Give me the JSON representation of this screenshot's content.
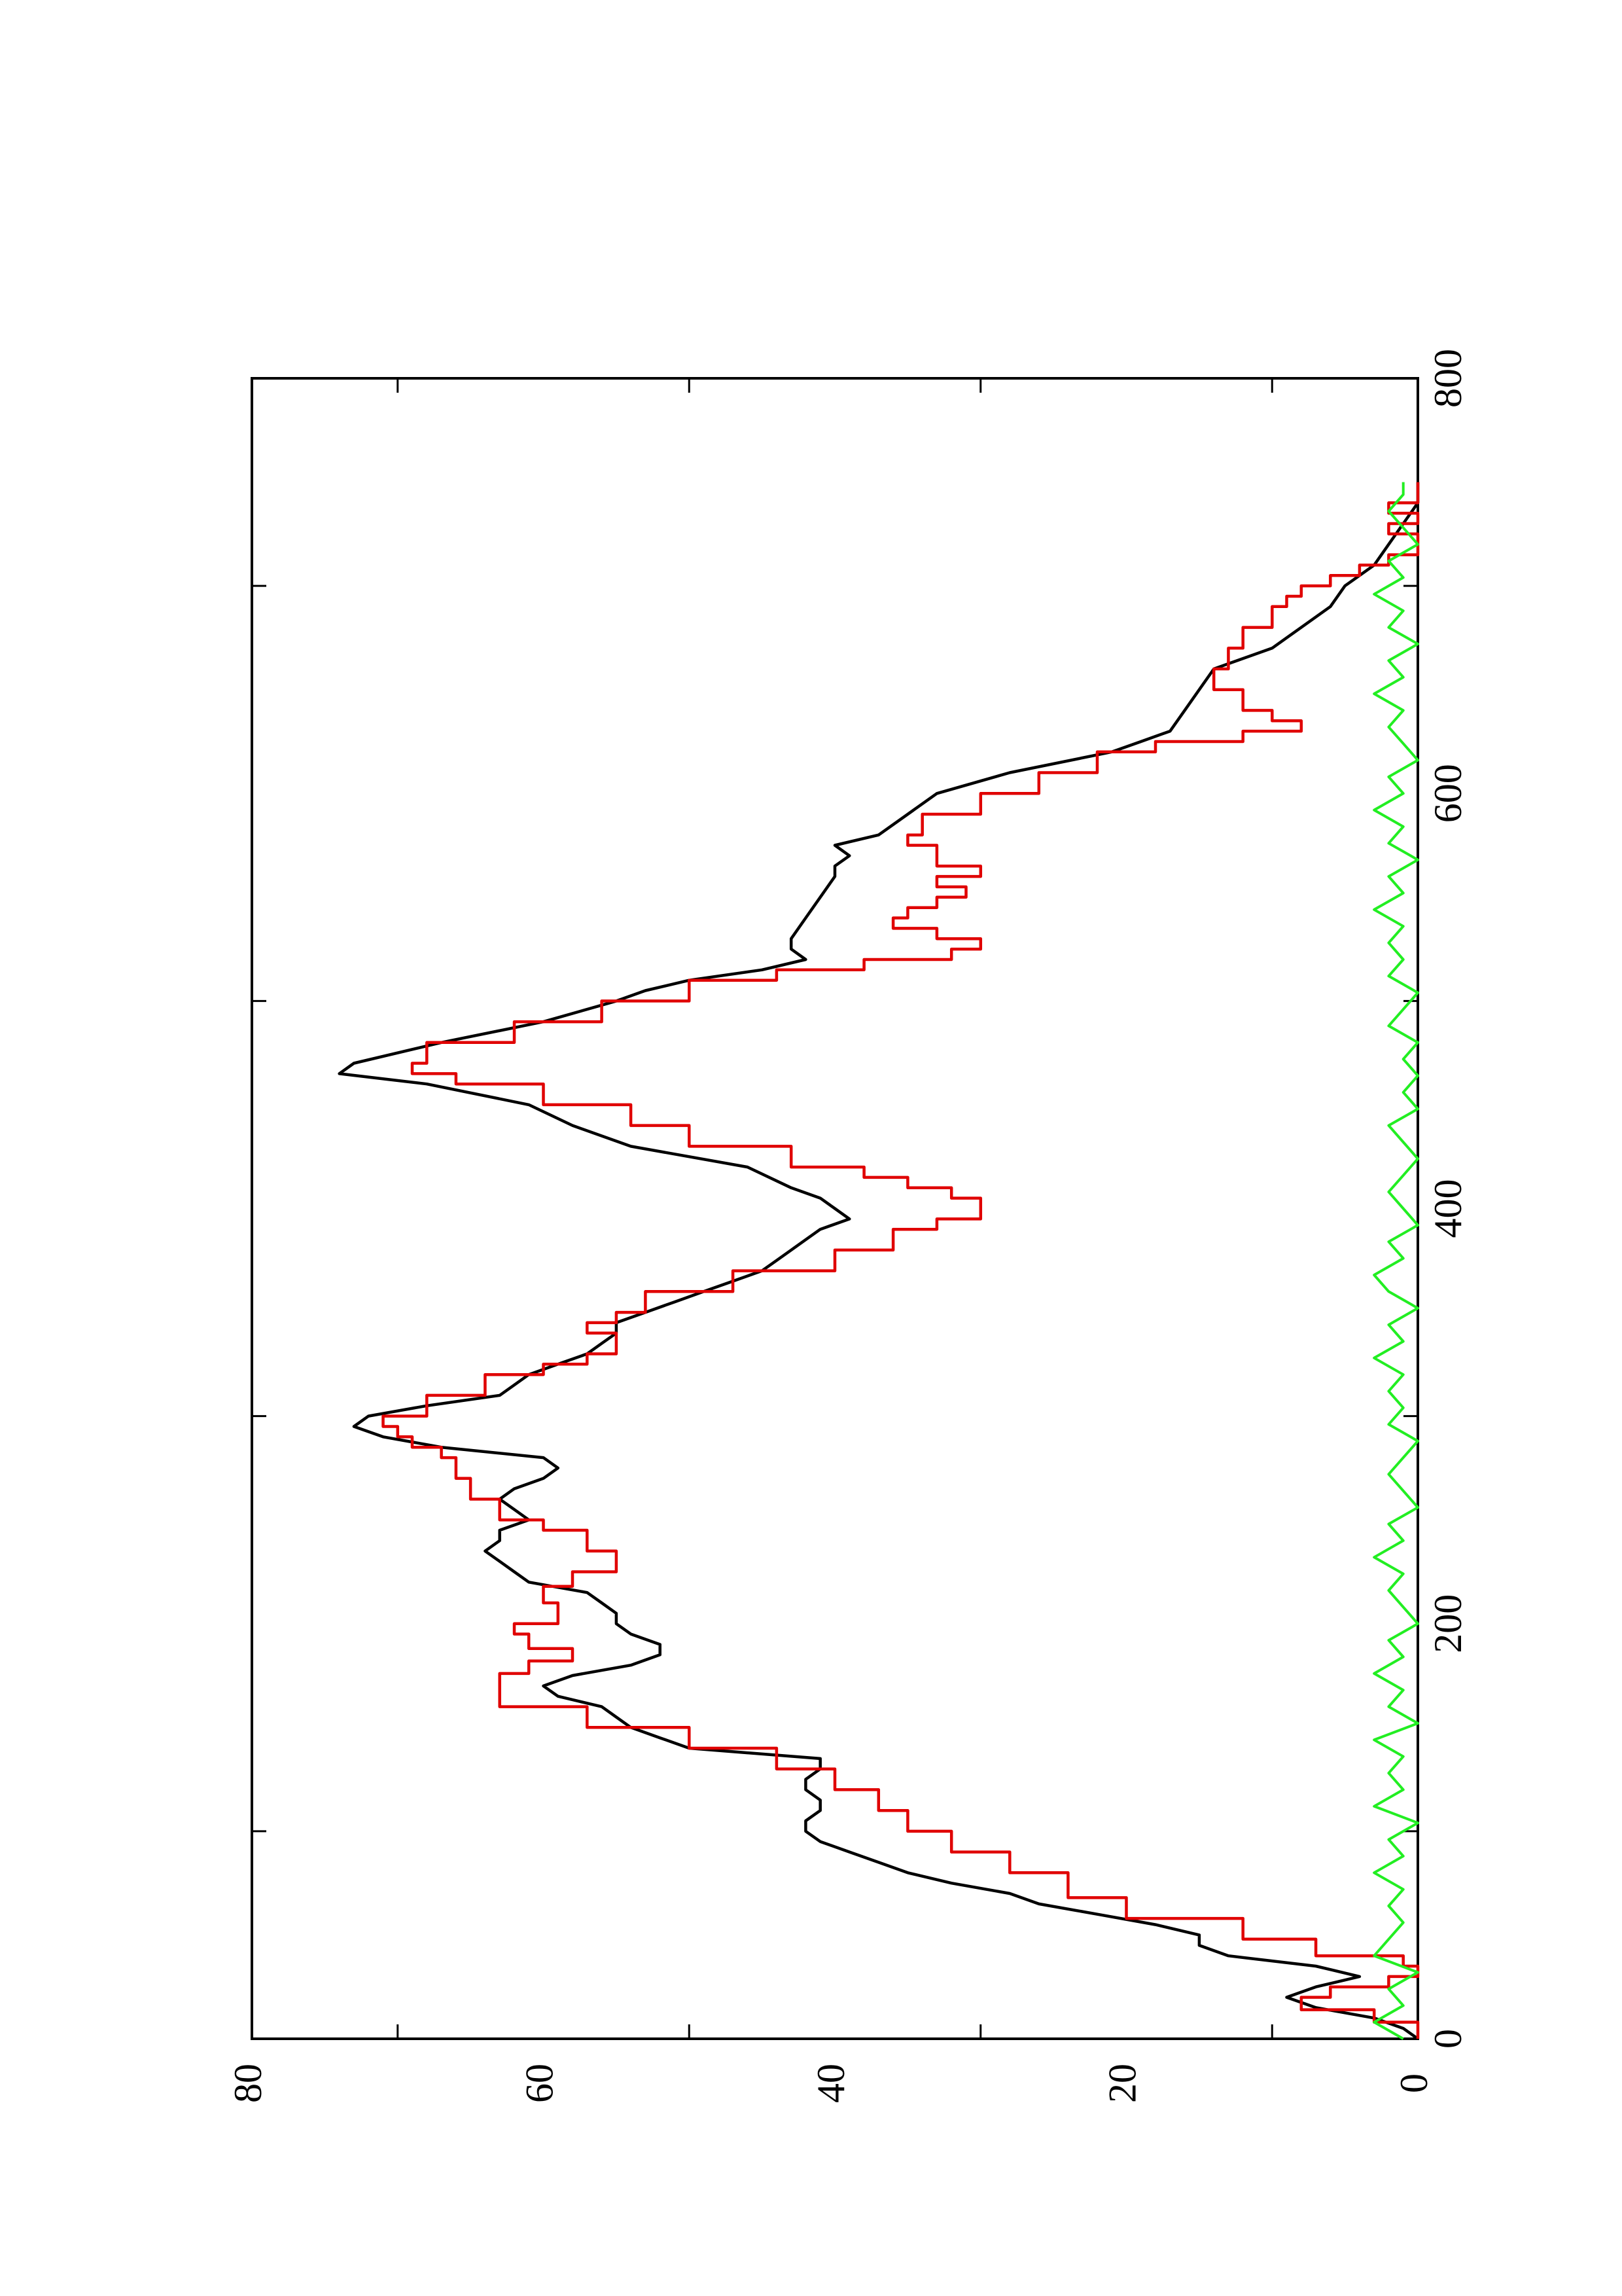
{
  "chart_data": {
    "type": "line",
    "orientation": "rotated-90-ccw",
    "title": "",
    "xlabel": "",
    "ylabel": "",
    "xlim": [
      0,
      800
    ],
    "ylim": [
      0,
      80
    ],
    "x_ticks": [
      "0",
      "200",
      "400",
      "600",
      "800"
    ],
    "y_ticks": [
      "0",
      "20",
      "40",
      "60",
      "80"
    ],
    "x_minor_ticks": [
      100,
      300,
      500,
      700
    ],
    "y_minor_ticks": [
      10,
      30,
      50,
      70
    ],
    "grid": false,
    "legend": "none",
    "series": [
      {
        "color": "#000000",
        "style": "continuous",
        "points": [
          [
            0,
            0
          ],
          [
            5,
            1
          ],
          [
            10,
            3
          ],
          [
            15,
            7
          ],
          [
            20,
            9
          ],
          [
            25,
            7
          ],
          [
            30,
            4
          ],
          [
            35,
            7
          ],
          [
            40,
            13
          ],
          [
            45,
            15
          ],
          [
            50,
            15
          ],
          [
            55,
            18
          ],
          [
            60,
            22
          ],
          [
            65,
            26
          ],
          [
            70,
            28
          ],
          [
            75,
            32
          ],
          [
            80,
            35
          ],
          [
            85,
            37
          ],
          [
            90,
            39
          ],
          [
            95,
            41
          ],
          [
            100,
            42
          ],
          [
            105,
            42
          ],
          [
            110,
            41
          ],
          [
            115,
            41
          ],
          [
            120,
            42
          ],
          [
            125,
            42
          ],
          [
            130,
            41
          ],
          [
            135,
            41
          ],
          [
            140,
            50
          ],
          [
            145,
            52
          ],
          [
            150,
            54
          ],
          [
            155,
            55
          ],
          [
            160,
            56
          ],
          [
            165,
            59
          ],
          [
            170,
            60
          ],
          [
            175,
            58
          ],
          [
            180,
            54
          ],
          [
            185,
            52
          ],
          [
            190,
            52
          ],
          [
            195,
            54
          ],
          [
            200,
            55
          ],
          [
            205,
            55
          ],
          [
            210,
            56
          ],
          [
            215,
            57
          ],
          [
            220,
            61
          ],
          [
            225,
            62
          ],
          [
            230,
            63
          ],
          [
            235,
            64
          ],
          [
            240,
            63
          ],
          [
            245,
            63
          ],
          [
            250,
            61
          ],
          [
            255,
            62
          ],
          [
            260,
            63
          ],
          [
            265,
            62
          ],
          [
            270,
            60
          ],
          [
            275,
            59
          ],
          [
            280,
            60
          ],
          [
            285,
            67
          ],
          [
            290,
            71
          ],
          [
            295,
            73
          ],
          [
            300,
            72
          ],
          [
            305,
            68
          ],
          [
            310,
            63
          ],
          [
            315,
            62
          ],
          [
            320,
            61
          ],
          [
            325,
            59
          ],
          [
            330,
            57
          ],
          [
            335,
            56
          ],
          [
            340,
            55
          ],
          [
            345,
            55
          ],
          [
            350,
            53
          ],
          [
            355,
            51
          ],
          [
            360,
            49
          ],
          [
            365,
            47
          ],
          [
            370,
            45
          ],
          [
            375,
            44
          ],
          [
            380,
            43
          ],
          [
            385,
            42
          ],
          [
            390,
            41
          ],
          [
            395,
            39
          ],
          [
            400,
            40
          ],
          [
            405,
            41
          ],
          [
            410,
            43
          ],
          [
            420,
            46
          ],
          [
            430,
            54
          ],
          [
            440,
            58
          ],
          [
            450,
            61
          ],
          [
            460,
            68
          ],
          [
            465,
            74
          ],
          [
            470,
            73
          ],
          [
            480,
            67
          ],
          [
            490,
            60
          ],
          [
            500,
            55
          ],
          [
            505,
            53
          ],
          [
            510,
            50
          ],
          [
            515,
            45
          ],
          [
            520,
            42
          ],
          [
            525,
            43
          ],
          [
            530,
            43
          ],
          [
            540,
            42
          ],
          [
            550,
            41
          ],
          [
            560,
            40
          ],
          [
            565,
            40
          ],
          [
            570,
            39
          ],
          [
            575,
            40
          ],
          [
            580,
            37
          ],
          [
            590,
            35
          ],
          [
            600,
            33
          ],
          [
            610,
            28
          ],
          [
            620,
            21
          ],
          [
            625,
            19
          ],
          [
            630,
            17
          ],
          [
            640,
            16
          ],
          [
            650,
            15
          ],
          [
            660,
            14
          ],
          [
            665,
            12
          ],
          [
            670,
            10
          ],
          [
            675,
            9
          ],
          [
            680,
            8
          ],
          [
            690,
            6
          ],
          [
            700,
            5
          ],
          [
            710,
            3
          ],
          [
            720,
            2
          ],
          [
            730,
            1
          ],
          [
            740,
            0
          ],
          [
            750,
            0
          ]
        ]
      },
      {
        "color": "#e00000",
        "style": "step",
        "points": [
          [
            0,
            0
          ],
          [
            8,
            3
          ],
          [
            14,
            8
          ],
          [
            20,
            6
          ],
          [
            25,
            2
          ],
          [
            30,
            0
          ],
          [
            35,
            1
          ],
          [
            40,
            7
          ],
          [
            48,
            12
          ],
          [
            58,
            20
          ],
          [
            68,
            24
          ],
          [
            80,
            28
          ],
          [
            90,
            32
          ],
          [
            100,
            35
          ],
          [
            110,
            37
          ],
          [
            120,
            40
          ],
          [
            130,
            44
          ],
          [
            140,
            50
          ],
          [
            150,
            57
          ],
          [
            160,
            63
          ],
          [
            170,
            63
          ],
          [
            176,
            61
          ],
          [
            182,
            58
          ],
          [
            188,
            61
          ],
          [
            195,
            62
          ],
          [
            200,
            59
          ],
          [
            210,
            60
          ],
          [
            218,
            58
          ],
          [
            225,
            55
          ],
          [
            235,
            57
          ],
          [
            245,
            60
          ],
          [
            250,
            63
          ],
          [
            260,
            65
          ],
          [
            270,
            66
          ],
          [
            280,
            67
          ],
          [
            285,
            69
          ],
          [
            290,
            70
          ],
          [
            295,
            71
          ],
          [
            300,
            68
          ],
          [
            310,
            64
          ],
          [
            320,
            60
          ],
          [
            325,
            57
          ],
          [
            330,
            55
          ],
          [
            335,
            55
          ],
          [
            340,
            57
          ],
          [
            345,
            55
          ],
          [
            350,
            53
          ],
          [
            360,
            47
          ],
          [
            370,
            40
          ],
          [
            380,
            36
          ],
          [
            390,
            33
          ],
          [
            395,
            30
          ],
          [
            400,
            30
          ],
          [
            405,
            32
          ],
          [
            410,
            35
          ],
          [
            415,
            38
          ],
          [
            420,
            43
          ],
          [
            430,
            50
          ],
          [
            440,
            54
          ],
          [
            450,
            60
          ],
          [
            460,
            66
          ],
          [
            465,
            69
          ],
          [
            470,
            68
          ],
          [
            480,
            62
          ],
          [
            490,
            56
          ],
          [
            500,
            50
          ],
          [
            510,
            44
          ],
          [
            515,
            38
          ],
          [
            520,
            32
          ],
          [
            525,
            30
          ],
          [
            530,
            33
          ],
          [
            535,
            36
          ],
          [
            540,
            35
          ],
          [
            545,
            33
          ],
          [
            550,
            31
          ],
          [
            555,
            33
          ],
          [
            560,
            30
          ],
          [
            565,
            33
          ],
          [
            570,
            33
          ],
          [
            575,
            35
          ],
          [
            580,
            34
          ],
          [
            590,
            30
          ],
          [
            600,
            26
          ],
          [
            610,
            22
          ],
          [
            620,
            18
          ],
          [
            625,
            12
          ],
          [
            630,
            8
          ],
          [
            635,
            10
          ],
          [
            640,
            12
          ],
          [
            650,
            14
          ],
          [
            660,
            13
          ],
          [
            670,
            12
          ],
          [
            680,
            10
          ],
          [
            690,
            9
          ],
          [
            695,
            8
          ],
          [
            700,
            6
          ],
          [
            705,
            4
          ],
          [
            710,
            2
          ],
          [
            715,
            0
          ],
          [
            720,
            0
          ],
          [
            725,
            2
          ],
          [
            730,
            0
          ],
          [
            735,
            2
          ],
          [
            740,
            0
          ],
          [
            750,
            0
          ]
        ]
      },
      {
        "color": "#22ee22",
        "style": "noise",
        "points": [
          [
            0,
            1
          ],
          [
            8,
            3
          ],
          [
            16,
            1
          ],
          [
            24,
            2
          ],
          [
            32,
            0
          ],
          [
            40,
            3
          ],
          [
            48,
            2
          ],
          [
            56,
            1
          ],
          [
            64,
            2
          ],
          [
            72,
            1
          ],
          [
            80,
            3
          ],
          [
            88,
            1
          ],
          [
            96,
            2
          ],
          [
            104,
            0
          ],
          [
            112,
            3
          ],
          [
            120,
            1
          ],
          [
            128,
            2
          ],
          [
            136,
            1
          ],
          [
            144,
            3
          ],
          [
            152,
            0
          ],
          [
            160,
            2
          ],
          [
            168,
            1
          ],
          [
            176,
            3
          ],
          [
            184,
            1
          ],
          [
            192,
            2
          ],
          [
            200,
            0
          ],
          [
            208,
            1
          ],
          [
            216,
            2
          ],
          [
            224,
            1
          ],
          [
            232,
            3
          ],
          [
            240,
            1
          ],
          [
            248,
            2
          ],
          [
            256,
            0
          ],
          [
            264,
            1
          ],
          [
            272,
            2
          ],
          [
            280,
            1
          ],
          [
            288,
            0
          ],
          [
            296,
            2
          ],
          [
            304,
            1
          ],
          [
            312,
            2
          ],
          [
            320,
            1
          ],
          [
            328,
            3
          ],
          [
            336,
            1
          ],
          [
            344,
            2
          ],
          [
            352,
            0
          ],
          [
            360,
            2
          ],
          [
            368,
            3
          ],
          [
            376,
            1
          ],
          [
            384,
            2
          ],
          [
            392,
            0
          ],
          [
            400,
            1
          ],
          [
            408,
            2
          ],
          [
            416,
            1
          ],
          [
            424,
            0
          ],
          [
            432,
            1
          ],
          [
            440,
            2
          ],
          [
            448,
            0
          ],
          [
            456,
            1
          ],
          [
            464,
            0
          ],
          [
            472,
            1
          ],
          [
            480,
            0
          ],
          [
            488,
            2
          ],
          [
            496,
            1
          ],
          [
            504,
            0
          ],
          [
            512,
            2
          ],
          [
            520,
            1
          ],
          [
            528,
            2
          ],
          [
            536,
            1
          ],
          [
            544,
            3
          ],
          [
            552,
            1
          ],
          [
            560,
            2
          ],
          [
            568,
            0
          ],
          [
            576,
            2
          ],
          [
            584,
            1
          ],
          [
            592,
            3
          ],
          [
            600,
            1
          ],
          [
            608,
            2
          ],
          [
            616,
            0
          ],
          [
            624,
            1
          ],
          [
            632,
            2
          ],
          [
            640,
            1
          ],
          [
            648,
            3
          ],
          [
            656,
            1
          ],
          [
            664,
            2
          ],
          [
            672,
            0
          ],
          [
            680,
            2
          ],
          [
            688,
            1
          ],
          [
            696,
            3
          ],
          [
            704,
            1
          ],
          [
            712,
            2
          ],
          [
            720,
            0
          ],
          [
            728,
            1
          ],
          [
            736,
            2
          ],
          [
            744,
            1
          ],
          [
            750,
            1
          ]
        ]
      }
    ]
  }
}
